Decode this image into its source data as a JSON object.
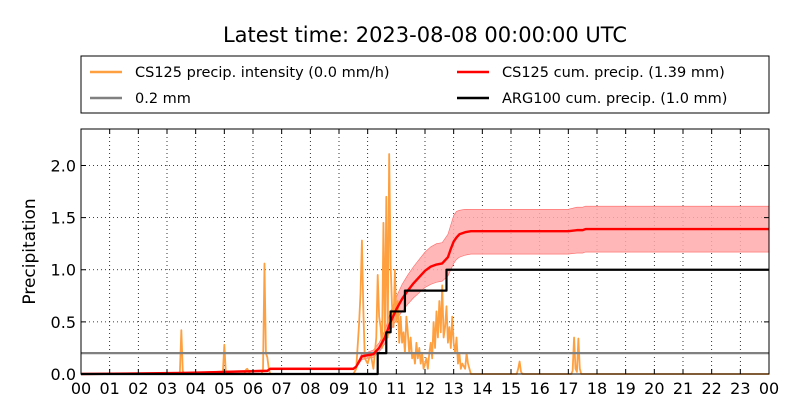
{
  "chart_data": {
    "type": "line",
    "title": "Latest time: 2023-08-08 00:00:00 UTC",
    "xlabel": "",
    "ylabel": "Precipitation",
    "xlim": [
      0,
      24
    ],
    "ylim": [
      0,
      2.35
    ],
    "x_tick_labels": [
      "00",
      "01",
      "02",
      "03",
      "04",
      "05",
      "06",
      "07",
      "08",
      "09",
      "10",
      "11",
      "12",
      "13",
      "14",
      "15",
      "16",
      "17",
      "18",
      "19",
      "20",
      "21",
      "22",
      "23",
      "00"
    ],
    "y_ticks": [
      0.0,
      0.5,
      1.0,
      1.5,
      2.0
    ],
    "y_tick_labels": [
      "0.0",
      "0.5",
      "1.0",
      "1.5",
      "2.0"
    ],
    "grid": true,
    "legend_position": "top",
    "series": [
      {
        "name": "CS125 precip. intensity (0.0 mm/h)",
        "color": "#ffa040",
        "x": [
          0,
          3.4,
          3.45,
          3.5,
          3.55,
          3.6,
          3.7,
          4.9,
          4.95,
          5.0,
          5.05,
          5.1,
          5.7,
          5.75,
          5.8,
          5.9,
          6.3,
          6.35,
          6.4,
          6.45,
          6.5,
          6.55,
          6.6,
          6.7,
          9.5,
          9.6,
          9.7,
          9.75,
          9.8,
          9.85,
          9.9,
          10.0,
          10.1,
          10.2,
          10.3,
          10.35,
          10.4,
          10.45,
          10.5,
          10.55,
          10.6,
          10.65,
          10.7,
          10.75,
          10.8,
          10.85,
          10.9,
          10.95,
          11.0,
          11.05,
          11.1,
          11.15,
          11.2,
          11.25,
          11.3,
          11.35,
          11.4,
          11.45,
          11.5,
          11.55,
          11.6,
          11.65,
          11.7,
          11.75,
          11.8,
          11.85,
          11.9,
          11.95,
          12.0,
          12.05,
          12.1,
          12.15,
          12.2,
          12.25,
          12.3,
          12.35,
          12.4,
          12.45,
          12.5,
          12.55,
          12.6,
          12.65,
          12.7,
          12.75,
          12.8,
          12.85,
          12.9,
          12.95,
          13.0,
          13.05,
          13.1,
          13.15,
          13.2,
          13.25,
          13.3,
          13.4,
          13.45,
          13.5,
          13.55,
          13.6,
          13.7,
          15.2,
          15.25,
          15.3,
          15.35,
          15.4,
          17.1,
          17.15,
          17.2,
          17.25,
          17.3,
          17.35,
          17.4,
          17.45,
          17.5,
          17.6,
          24
        ],
        "values": [
          0,
          0,
          0.02,
          0.42,
          0.03,
          0.0,
          0,
          0,
          0.02,
          0.28,
          0.02,
          0,
          0,
          0.04,
          0.05,
          0,
          0,
          0.05,
          1.06,
          0.2,
          0.16,
          0.05,
          0,
          0,
          0,
          0.05,
          0.48,
          0.77,
          1.28,
          0.6,
          0.15,
          0.1,
          0.2,
          0.05,
          0.35,
          0.95,
          0.55,
          0.45,
          0.25,
          1.45,
          0.35,
          1.7,
          0.35,
          2.11,
          1.05,
          0.65,
          0.45,
          1.0,
          0.5,
          0.7,
          0.3,
          0.55,
          0.3,
          0.4,
          0.2,
          0.55,
          0.4,
          0.2,
          0.35,
          0.15,
          0.2,
          0.1,
          0.3,
          0.15,
          0.25,
          0.1,
          0.2,
          0.05,
          0.1,
          0.15,
          0.05,
          0.2,
          0.3,
          0.15,
          0.5,
          0.25,
          0.6,
          0.35,
          0.7,
          0.4,
          0.85,
          0.35,
          0.45,
          0.65,
          0.3,
          0.45,
          0.25,
          0.55,
          0.3,
          0.2,
          0.35,
          0.1,
          0.2,
          0.05,
          0.1,
          0.05,
          0.2,
          0.1,
          0.05,
          0.0,
          0,
          0,
          0.05,
          0.12,
          0.02,
          0,
          0,
          0.03,
          0.35,
          0.05,
          0.02,
          0.34,
          0.05,
          0.0,
          0,
          0,
          0
        ],
        "style": "line"
      },
      {
        "name": "0.2 mm",
        "color": "#808080",
        "x": [
          0,
          24
        ],
        "values": [
          0.2,
          0.2
        ],
        "style": "line"
      },
      {
        "name": "CS125 cum. precip. (1.39 mm)",
        "color": "#ff0000",
        "band_color": "#ffaaaa",
        "x": [
          0,
          3.5,
          5.0,
          6.5,
          6.6,
          9.5,
          9.6,
          9.8,
          10.0,
          10.2,
          10.4,
          10.6,
          10.8,
          11.0,
          11.2,
          11.4,
          11.6,
          11.8,
          12.0,
          12.2,
          12.4,
          12.6,
          12.8,
          12.9,
          13.0,
          13.1,
          13.2,
          13.4,
          13.6,
          13.8,
          14.0,
          15.0,
          16.0,
          17.0,
          17.3,
          17.5,
          17.6,
          24
        ],
        "values": [
          0,
          0.01,
          0.02,
          0.03,
          0.05,
          0.05,
          0.07,
          0.17,
          0.18,
          0.19,
          0.25,
          0.35,
          0.5,
          0.62,
          0.72,
          0.8,
          0.87,
          0.93,
          0.99,
          1.03,
          1.05,
          1.06,
          1.12,
          1.2,
          1.27,
          1.31,
          1.34,
          1.36,
          1.37,
          1.37,
          1.37,
          1.37,
          1.37,
          1.37,
          1.38,
          1.38,
          1.39,
          1.39
        ],
        "band_low": [
          0,
          0.01,
          0.02,
          0.03,
          0.04,
          0.04,
          0.06,
          0.14,
          0.15,
          0.16,
          0.21,
          0.29,
          0.42,
          0.52,
          0.6,
          0.67,
          0.73,
          0.78,
          0.83,
          0.86,
          0.88,
          0.89,
          0.94,
          1.0,
          1.06,
          1.1,
          1.12,
          1.14,
          1.15,
          1.15,
          1.15,
          1.15,
          1.15,
          1.15,
          1.16,
          1.16,
          1.17,
          1.17
        ],
        "band_high": [
          0,
          0.01,
          0.03,
          0.04,
          0.06,
          0.06,
          0.08,
          0.2,
          0.21,
          0.23,
          0.3,
          0.42,
          0.6,
          0.74,
          0.86,
          0.95,
          1.03,
          1.1,
          1.17,
          1.22,
          1.25,
          1.26,
          1.34,
          1.43,
          1.52,
          1.56,
          1.57,
          1.58,
          1.58,
          1.58,
          1.58,
          1.58,
          1.58,
          1.58,
          1.6,
          1.6,
          1.61,
          1.61
        ],
        "style": "line-with-band"
      },
      {
        "name": "ARG100 cum. precip. (1.0 mm)",
        "color": "#000000",
        "x": [
          0,
          10.35,
          10.35,
          10.65,
          10.65,
          10.8,
          10.8,
          11.3,
          11.3,
          12.75,
          12.75,
          24
        ],
        "values": [
          0,
          0,
          0.2,
          0.2,
          0.4,
          0.4,
          0.6,
          0.6,
          0.8,
          0.8,
          1.0,
          1.0
        ],
        "style": "step"
      }
    ]
  }
}
